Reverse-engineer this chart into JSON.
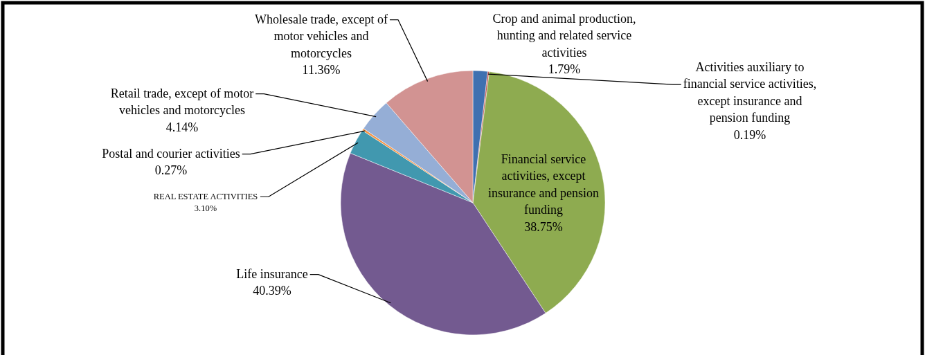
{
  "chart_data": {
    "type": "pie",
    "categories": [
      "Crop and animal production, hunting and related service activities",
      "Activities auxiliary to financial service activities, except insurance and pension funding",
      "Financial service activities, except insurance and pension funding",
      "Life insurance",
      "REAL ESTATE ACTIVITIES",
      "Postal and courier activities",
      "Retail trade, except of motor vehicles and motorcycles",
      "Wholesale trade, except of motor vehicles and motorcycles"
    ],
    "values": [
      1.79,
      0.19,
      38.75,
      40.39,
      3.1,
      0.27,
      4.14,
      11.36
    ],
    "colors": [
      "#3f70b0",
      "#c0504d",
      "#8eab50",
      "#735a90",
      "#4198af",
      "#f79646",
      "#95aed6",
      "#d29392"
    ],
    "value_labels": [
      "1.79%",
      "0.19%",
      "38.75%",
      "40.39%",
      "3.10%",
      "0.27%",
      "4.14%",
      "11.36%"
    ]
  }
}
